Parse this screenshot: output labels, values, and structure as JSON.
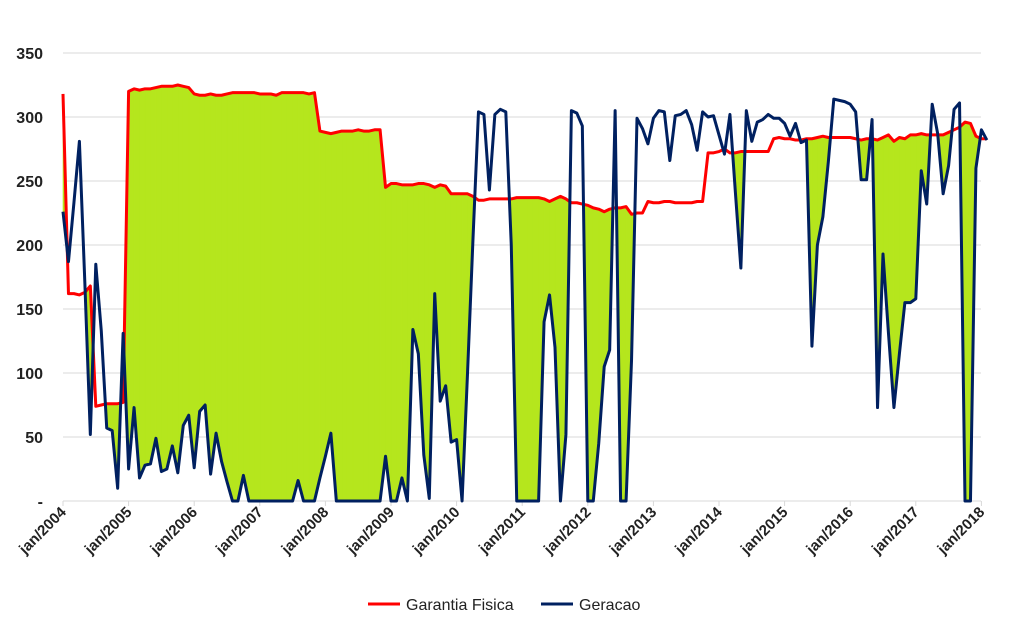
{
  "chart_data": {
    "type": "line",
    "title": "",
    "xlabel": "",
    "ylabel": "",
    "ylim": [
      0,
      350
    ],
    "y_ticks": [
      0,
      50,
      100,
      150,
      200,
      250,
      300,
      350
    ],
    "y_tick_labels": [
      "-",
      "50",
      "100",
      "150",
      "200",
      "250",
      "300",
      "350"
    ],
    "x_tick_labels": [
      "jan/2004",
      "jan/2005",
      "jan/2006",
      "jan/2007",
      "jan/2008",
      "jan/2009",
      "jan/2010",
      "jan/2011",
      "jan/2012",
      "jan/2013",
      "jan/2014",
      "jan/2015",
      "jan/2016",
      "jan/2017",
      "jan/2018"
    ],
    "x_start": "jan/2004",
    "x_end": "mar/2018",
    "grid": "horizontal",
    "legend_position": "bottom",
    "fill_between": {
      "color": "#b5e61d",
      "where": "Garantia Fisica above Geracao"
    },
    "series": [
      {
        "name": "Garantia Fisica",
        "color": "#ff0000",
        "values": [
          318,
          162,
          162,
          161,
          163,
          168,
          74,
          75,
          76,
          76,
          76,
          77,
          320,
          322,
          321,
          322,
          322,
          323,
          324,
          324,
          324,
          325,
          324,
          323,
          318,
          317,
          317,
          318,
          317,
          317,
          318,
          319,
          319,
          319,
          319,
          319,
          318,
          318,
          318,
          317,
          319,
          319,
          319,
          319,
          319,
          318,
          319,
          289,
          288,
          287,
          288,
          289,
          289,
          289,
          290,
          289,
          289,
          290,
          290,
          245,
          248,
          248,
          247,
          247,
          247,
          248,
          248,
          247,
          245,
          247,
          246,
          240,
          240,
          240,
          240,
          238,
          235,
          235,
          236,
          236,
          236,
          236,
          236,
          237,
          237,
          237,
          237,
          237,
          236,
          234,
          236,
          238,
          236,
          233,
          233,
          232,
          231,
          229,
          228,
          226,
          228,
          229,
          229,
          230,
          224,
          225,
          225,
          234,
          233,
          233,
          234,
          234,
          233,
          233,
          233,
          233,
          234,
          234,
          272,
          272,
          273,
          275,
          272,
          272,
          273,
          273,
          273,
          273,
          273,
          273,
          283,
          284,
          283,
          283,
          282,
          282,
          283,
          283,
          284,
          285,
          284,
          284,
          284,
          284,
          284,
          283,
          282,
          283,
          283,
          282,
          284,
          286,
          281,
          284,
          283,
          286,
          286,
          287,
          286,
          286,
          286,
          286,
          288,
          290,
          292,
          296,
          295,
          285,
          283,
          283
        ]
      },
      {
        "name": "Geracao",
        "color": "#002060",
        "values": [
          226,
          187,
          233,
          281,
          170,
          52,
          185,
          133,
          57,
          55,
          10,
          131,
          25,
          73,
          18,
          28,
          29,
          49,
          23,
          25,
          43,
          22,
          59,
          67,
          26,
          70,
          75,
          21,
          53,
          31,
          15,
          0,
          0,
          20,
          0,
          0,
          0,
          0,
          0,
          0,
          0,
          0,
          0,
          16,
          0,
          0,
          0,
          18,
          35,
          53,
          0,
          0,
          0,
          0,
          0,
          0,
          0,
          0,
          0,
          35,
          0,
          0,
          18,
          0,
          134,
          115,
          36,
          2,
          162,
          78,
          90,
          46,
          48,
          0,
          100,
          205,
          304,
          302,
          243,
          302,
          306,
          304,
          200,
          0,
          0,
          0,
          0,
          0,
          140,
          161,
          120,
          0,
          52,
          305,
          303,
          293,
          0,
          0,
          45,
          105,
          118,
          305,
          0,
          0,
          110,
          299,
          291,
          279,
          299,
          305,
          304,
          266,
          301,
          302,
          305,
          294,
          274,
          304,
          300,
          301,
          286,
          271,
          302,
          241,
          182,
          305,
          281,
          296,
          298,
          302,
          299,
          299,
          295,
          285,
          295,
          280,
          282,
          121,
          200,
          222,
          265,
          314,
          313,
          312,
          310,
          304,
          251,
          251,
          298,
          73,
          193,
          131,
          73,
          115,
          155,
          155,
          158,
          258,
          232,
          310,
          287,
          240,
          262,
          306,
          311,
          0,
          0,
          260,
          290,
          282
        ]
      }
    ]
  }
}
